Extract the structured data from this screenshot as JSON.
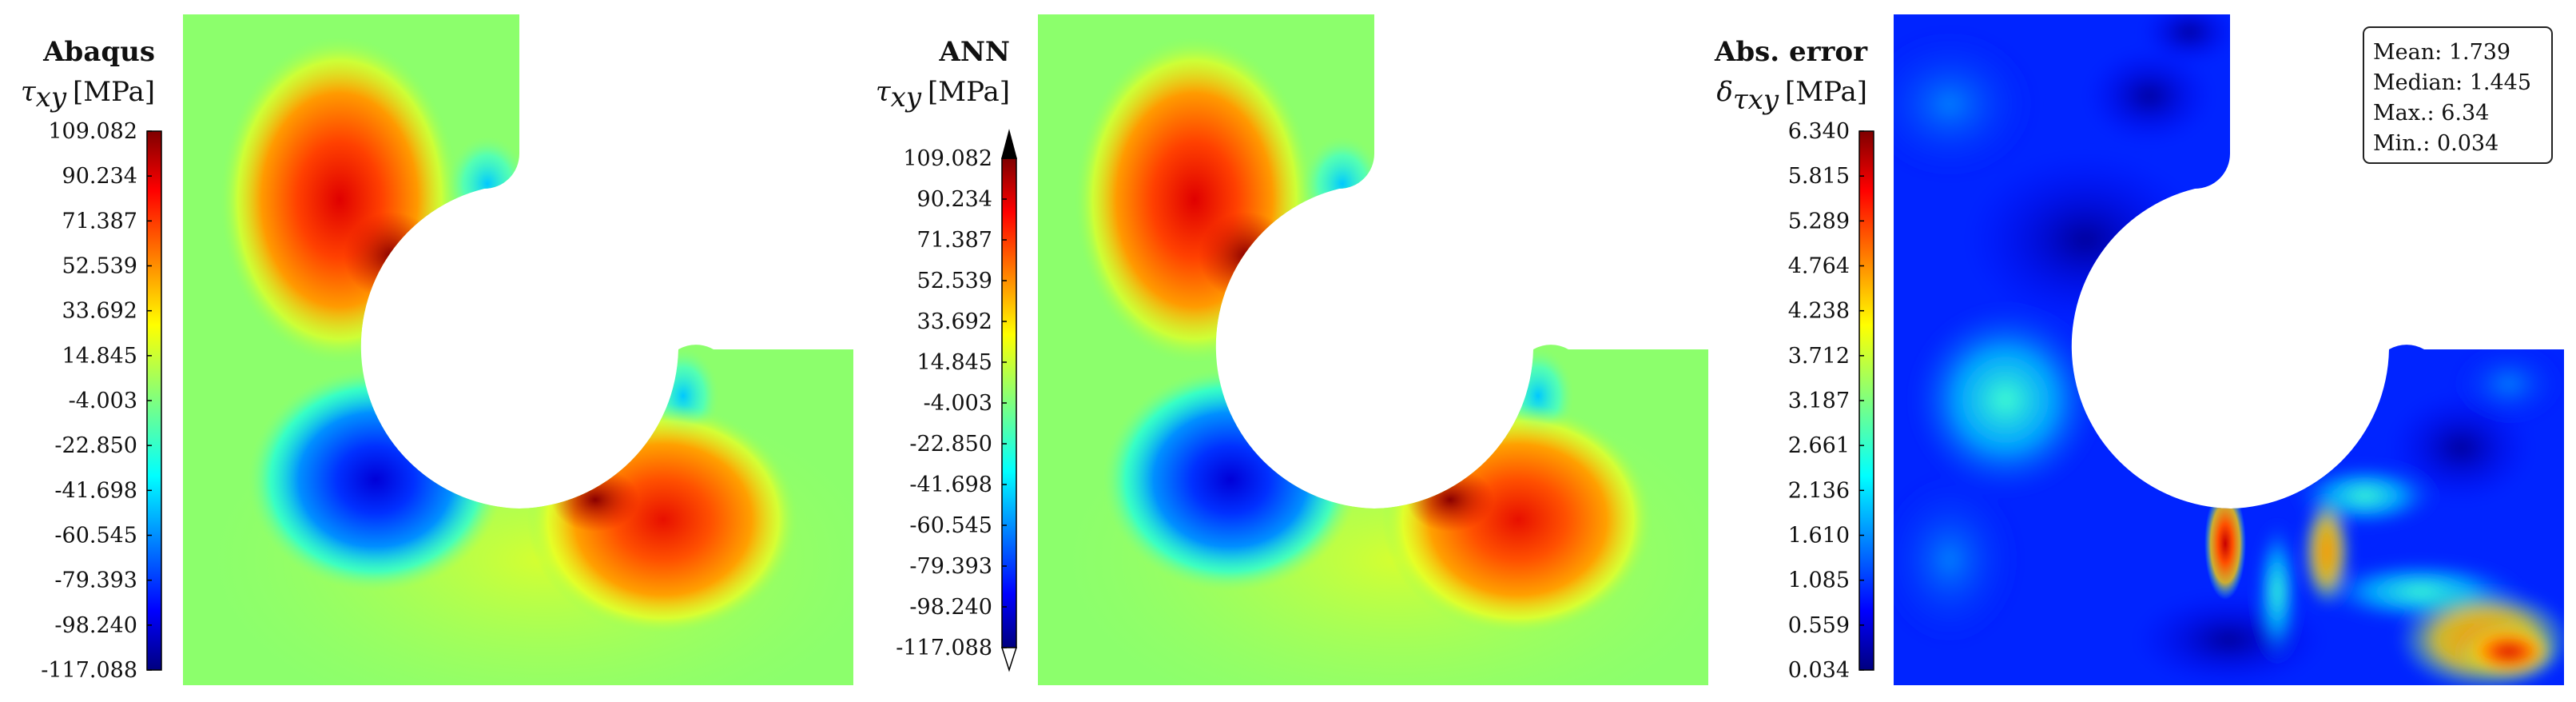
{
  "chart_data": [
    {
      "type": "heatmap",
      "title": "Abaqus",
      "quantity_symbol": "τ",
      "quantity_subscript": "xy",
      "unit": "[MPa]",
      "colormap": "jet",
      "colorbar_ticks": [
        "109.082",
        "90.234",
        "71.387",
        "52.539",
        "33.692",
        "14.845",
        "-4.003",
        "-22.850",
        "-41.698",
        "-60.545",
        "-79.393",
        "-98.240",
        "-117.088"
      ],
      "range": [
        -117.088,
        109.082
      ]
    },
    {
      "type": "heatmap",
      "title": "ANN",
      "quantity_symbol": "τ",
      "quantity_subscript": "xy",
      "unit": "[MPa]",
      "colormap": "jet",
      "colorbar_extend": "both",
      "colorbar_ticks": [
        "109.082",
        "90.234",
        "71.387",
        "52.539",
        "33.692",
        "14.845",
        "-4.003",
        "-22.850",
        "-41.698",
        "-60.545",
        "-79.393",
        "-98.240",
        "-117.088"
      ],
      "range": [
        -117.088,
        109.082
      ]
    },
    {
      "type": "heatmap",
      "title": "Abs. error",
      "quantity_symbol": "δ",
      "quantity_subscript": "τxy",
      "unit": "[MPa]",
      "colormap": "jet",
      "colorbar_ticks": [
        "6.340",
        "5.815",
        "5.289",
        "4.764",
        "4.238",
        "3.712",
        "3.187",
        "2.661",
        "2.136",
        "1.610",
        "1.085",
        "0.559",
        "0.034"
      ],
      "range": [
        0.034,
        6.34
      ],
      "stats": [
        {
          "label": "Mean:",
          "value": "1.739"
        },
        {
          "label": "Median:",
          "value": "1.445"
        },
        {
          "label": "Max.:",
          "value": "6.34"
        },
        {
          "label": "Min.:",
          "value": "0.034"
        }
      ]
    }
  ]
}
